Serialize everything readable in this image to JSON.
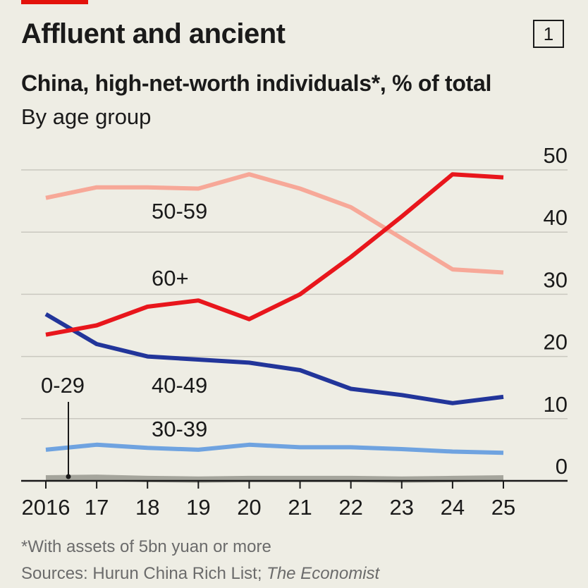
{
  "header": {
    "title": "Affluent and ancient",
    "chart_number": "1",
    "subtitle": "China, high-net-worth individuals*, % of total",
    "subsubtitle": "By age group"
  },
  "footer": {
    "footnote": "*With assets of 5bn yuan or more",
    "source_prefix": "Sources: Hurun China Rich List; ",
    "source_italic": "The Economist"
  },
  "colors": {
    "brand_red": "#e3120b",
    "background": "#eeede4",
    "series_60plus": "#e8161c",
    "series_50_59": "#f7a898",
    "series_40_49": "#22359a",
    "series_30_39": "#6fa3e0",
    "series_0_29": "#a5a59c",
    "gridline": "#c9c8bf"
  },
  "chart_data": {
    "type": "line",
    "title": "China, high-net-worth individuals*, % of total",
    "subtitle": "By age group",
    "x": [
      2016,
      2017,
      2018,
      2019,
      2020,
      2021,
      2022,
      2023,
      2024,
      2025
    ],
    "x_tick_labels": [
      "2016",
      "17",
      "18",
      "19",
      "20",
      "21",
      "22",
      "23",
      "24",
      "25"
    ],
    "y_ticks": [
      0,
      10,
      20,
      30,
      40,
      50
    ],
    "ylim": [
      0,
      50
    ],
    "y_axis_side": "right",
    "grid": true,
    "series": [
      {
        "name": "50-59",
        "values": [
          45.5,
          47.2,
          47.2,
          47.0,
          49.3,
          47.0,
          44.0,
          39.0,
          34.0,
          33.5
        ],
        "color": "#f7a898"
      },
      {
        "name": "60+",
        "values": [
          23.5,
          25.0,
          28.0,
          29.0,
          26.0,
          30.0,
          36.0,
          42.5,
          49.3,
          48.8
        ],
        "color": "#e8161c"
      },
      {
        "name": "40-49",
        "values": [
          26.8,
          22.0,
          20.0,
          19.5,
          19.0,
          17.8,
          14.8,
          13.8,
          12.5,
          13.5
        ],
        "color": "#22359a"
      },
      {
        "name": "30-39",
        "values": [
          5.0,
          5.8,
          5.3,
          5.0,
          5.8,
          5.4,
          5.4,
          5.1,
          4.7,
          4.5
        ],
        "color": "#6fa3e0"
      },
      {
        "name": "0-29",
        "values": [
          0.4,
          0.5,
          0.3,
          0.2,
          0.3,
          0.3,
          0.3,
          0.2,
          0.3,
          0.4
        ],
        "color": "#a5a59c"
      }
    ]
  }
}
